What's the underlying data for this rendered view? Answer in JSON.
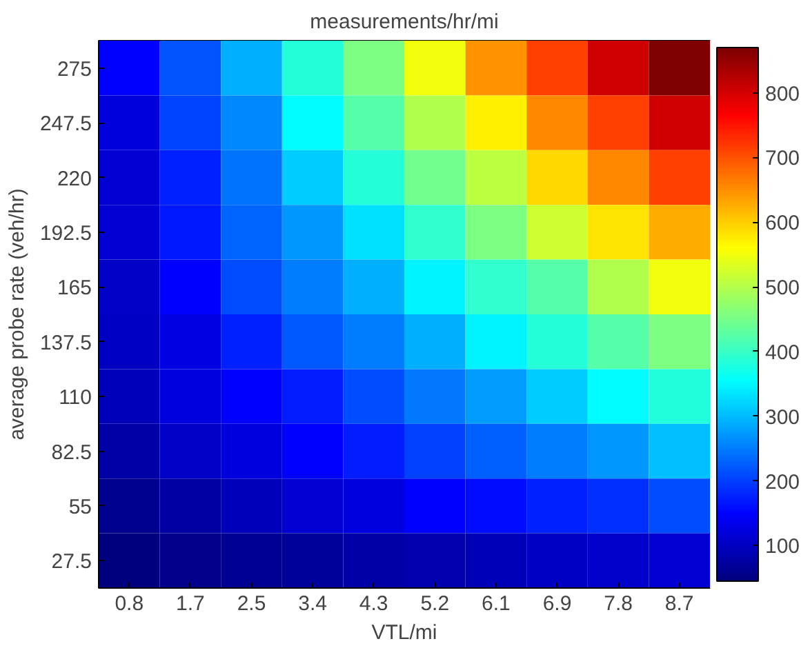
{
  "chart_data": {
    "type": "heatmap",
    "title": "measurements/hr/mi",
    "xlabel": "VTL/mi",
    "ylabel": "average probe rate (veh/hr)",
    "categories": [
      "0.8",
      "1.7",
      "2.5",
      "3.4",
      "4.3",
      "5.2",
      "6.1",
      "6.9",
      "7.8",
      "8.7"
    ],
    "y_categories": [
      "275",
      "247.5",
      "220",
      "192.5",
      "165",
      "137.5",
      "110",
      "82.5",
      "55",
      "27.5"
    ],
    "cells": [
      [
        150,
        218,
        293,
        385,
        457,
        548,
        647,
        713,
        805,
        870
      ],
      [
        120,
        206,
        260,
        354,
        425,
        499,
        573,
        655,
        713,
        805
      ],
      [
        115,
        177,
        243,
        313,
        385,
        445,
        507,
        590,
        655,
        713
      ],
      [
        115,
        169,
        231,
        272,
        330,
        396,
        457,
        520,
        581,
        627
      ],
      [
        105,
        150,
        210,
        251,
        293,
        346,
        396,
        425,
        499,
        548
      ],
      [
        100,
        127,
        177,
        220,
        251,
        293,
        346,
        385,
        425,
        457
      ],
      [
        95,
        125,
        150,
        173,
        210,
        247,
        277,
        313,
        354,
        381
      ],
      [
        80,
        105,
        125,
        150,
        173,
        200,
        228,
        251,
        272,
        303
      ],
      [
        60,
        75,
        95,
        115,
        125,
        150,
        158,
        177,
        190,
        210
      ],
      [
        45,
        55,
        62,
        70,
        78,
        85,
        92,
        100,
        108,
        115
      ]
    ],
    "clim": [
      45,
      870
    ],
    "cticks": [
      100,
      200,
      300,
      400,
      500,
      600,
      700,
      800
    ]
  }
}
